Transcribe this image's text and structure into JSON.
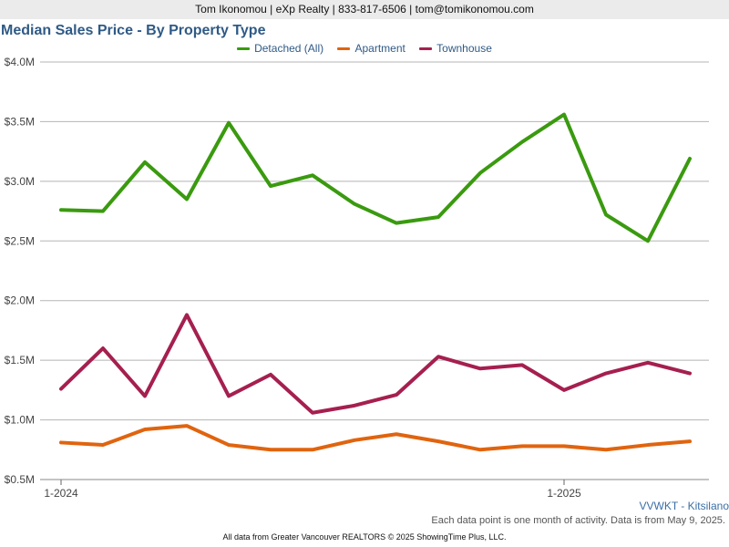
{
  "header": {
    "contact": "Tom Ikonomou | eXp Realty | 833-817-6506 | tom@tomikonomou.com"
  },
  "chart_data": {
    "type": "line",
    "title": "Median Sales Price - By Property Type",
    "xlabel": "",
    "ylabel": "",
    "x": [
      "2024-01",
      "2024-02",
      "2024-03",
      "2024-04",
      "2024-05",
      "2024-06",
      "2024-07",
      "2024-08",
      "2024-09",
      "2024-10",
      "2024-11",
      "2024-12",
      "2025-01",
      "2025-02",
      "2025-03",
      "2025-04"
    ],
    "x_tick_labels": [
      "1-2024",
      "1-2025"
    ],
    "y_tick_labels": [
      "$0.5M",
      "$1.0M",
      "$1.5M",
      "$2.0M",
      "$2.5M",
      "$3.0M",
      "$3.5M",
      "$4.0M"
    ],
    "ylim": [
      0.5,
      4.0
    ],
    "y_unit": "$M",
    "grid": true,
    "legend_position": "top",
    "series": [
      {
        "name": "Detached (All)",
        "color": "#3a9a0f",
        "values": [
          2.76,
          2.75,
          3.16,
          2.85,
          3.49,
          2.96,
          3.05,
          2.81,
          2.65,
          2.7,
          3.07,
          3.33,
          3.56,
          2.72,
          2.5,
          3.19
        ]
      },
      {
        "name": "Apartment",
        "color": "#e0640f",
        "values": [
          0.81,
          0.79,
          0.92,
          0.95,
          0.79,
          0.75,
          0.75,
          0.83,
          0.88,
          0.82,
          0.75,
          0.78,
          0.78,
          0.75,
          0.79,
          0.82
        ]
      },
      {
        "name": "Townhouse",
        "color": "#a51f4f",
        "values": [
          1.26,
          1.6,
          1.2,
          1.88,
          1.2,
          1.38,
          1.06,
          1.12,
          1.21,
          1.53,
          1.43,
          1.46,
          1.25,
          1.39,
          1.48,
          1.39
        ]
      }
    ]
  },
  "region_label": "VVWKT - Kitsilano",
  "note": "Each data point is one month of activity. Data is from May 9, 2025.",
  "footer": "All data from Greater Vancouver REALTORS © 2025 ShowingTime Plus, LLC."
}
